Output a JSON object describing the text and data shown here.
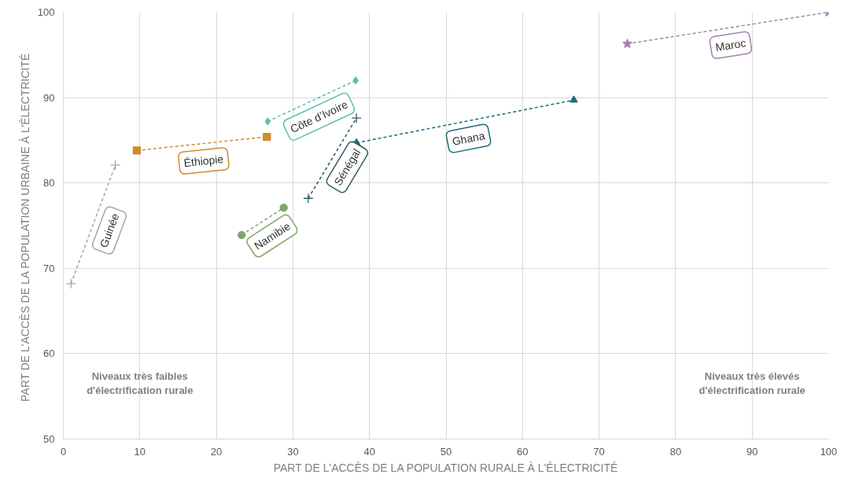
{
  "chart_data": {
    "type": "line",
    "xlabel": "PART DE L'ACCÈS DE LA POPULATION RURALE À L'ÉLECTRICITÉ",
    "ylabel": "PART DE  L'ACCÈS DE LA POPULATION URBAINE À L'ÉLECTRICITÉ",
    "xlim": [
      0,
      100
    ],
    "ylim": [
      50,
      100
    ],
    "xticks": [
      0,
      10,
      20,
      30,
      40,
      50,
      60,
      70,
      80,
      90,
      100
    ],
    "yticks": [
      50,
      60,
      70,
      80,
      90,
      100
    ],
    "grid": true,
    "line_style": "dashed",
    "series": [
      {
        "name": "Guinée",
        "color": "#a6a6a6",
        "marker": "cross",
        "x": [
          1,
          6.8
        ],
        "values": [
          68.2,
          82.1
        ]
      },
      {
        "name": "Éthiopie",
        "color": "#d08c2a",
        "marker": "square",
        "x": [
          9.6,
          26.6
        ],
        "values": [
          83.8,
          85.4
        ]
      },
      {
        "name": "Côte d’Ivoire",
        "color": "#5bbdb5",
        "marker": "diamond",
        "x": [
          26.7,
          38.2
        ],
        "values": [
          87.2,
          92
        ]
      },
      {
        "name": "Namibie",
        "color": "#80a56b",
        "marker": "circle",
        "x": [
          23.3,
          28.8
        ],
        "values": [
          73.9,
          77.1
        ]
      },
      {
        "name": "Sénégal",
        "color": "#2d5d62",
        "marker": "cross",
        "x": [
          32,
          38.3
        ],
        "values": [
          78.2,
          87.6
        ]
      },
      {
        "name": "Ghana",
        "color": "#1e6b7b",
        "marker": "triangle",
        "x": [
          38.3,
          66.7
        ],
        "values": [
          84.7,
          89.7
        ]
      },
      {
        "name": "Maroc",
        "color": "#a680b0",
        "marker": "star",
        "x": [
          73.7,
          100
        ],
        "values": [
          96.3,
          100
        ]
      }
    ],
    "annotations": [
      "Niveaux très faibles\nd'électrification rurale",
      "Niveaux très élevés\nd'électrification rurale"
    ]
  }
}
